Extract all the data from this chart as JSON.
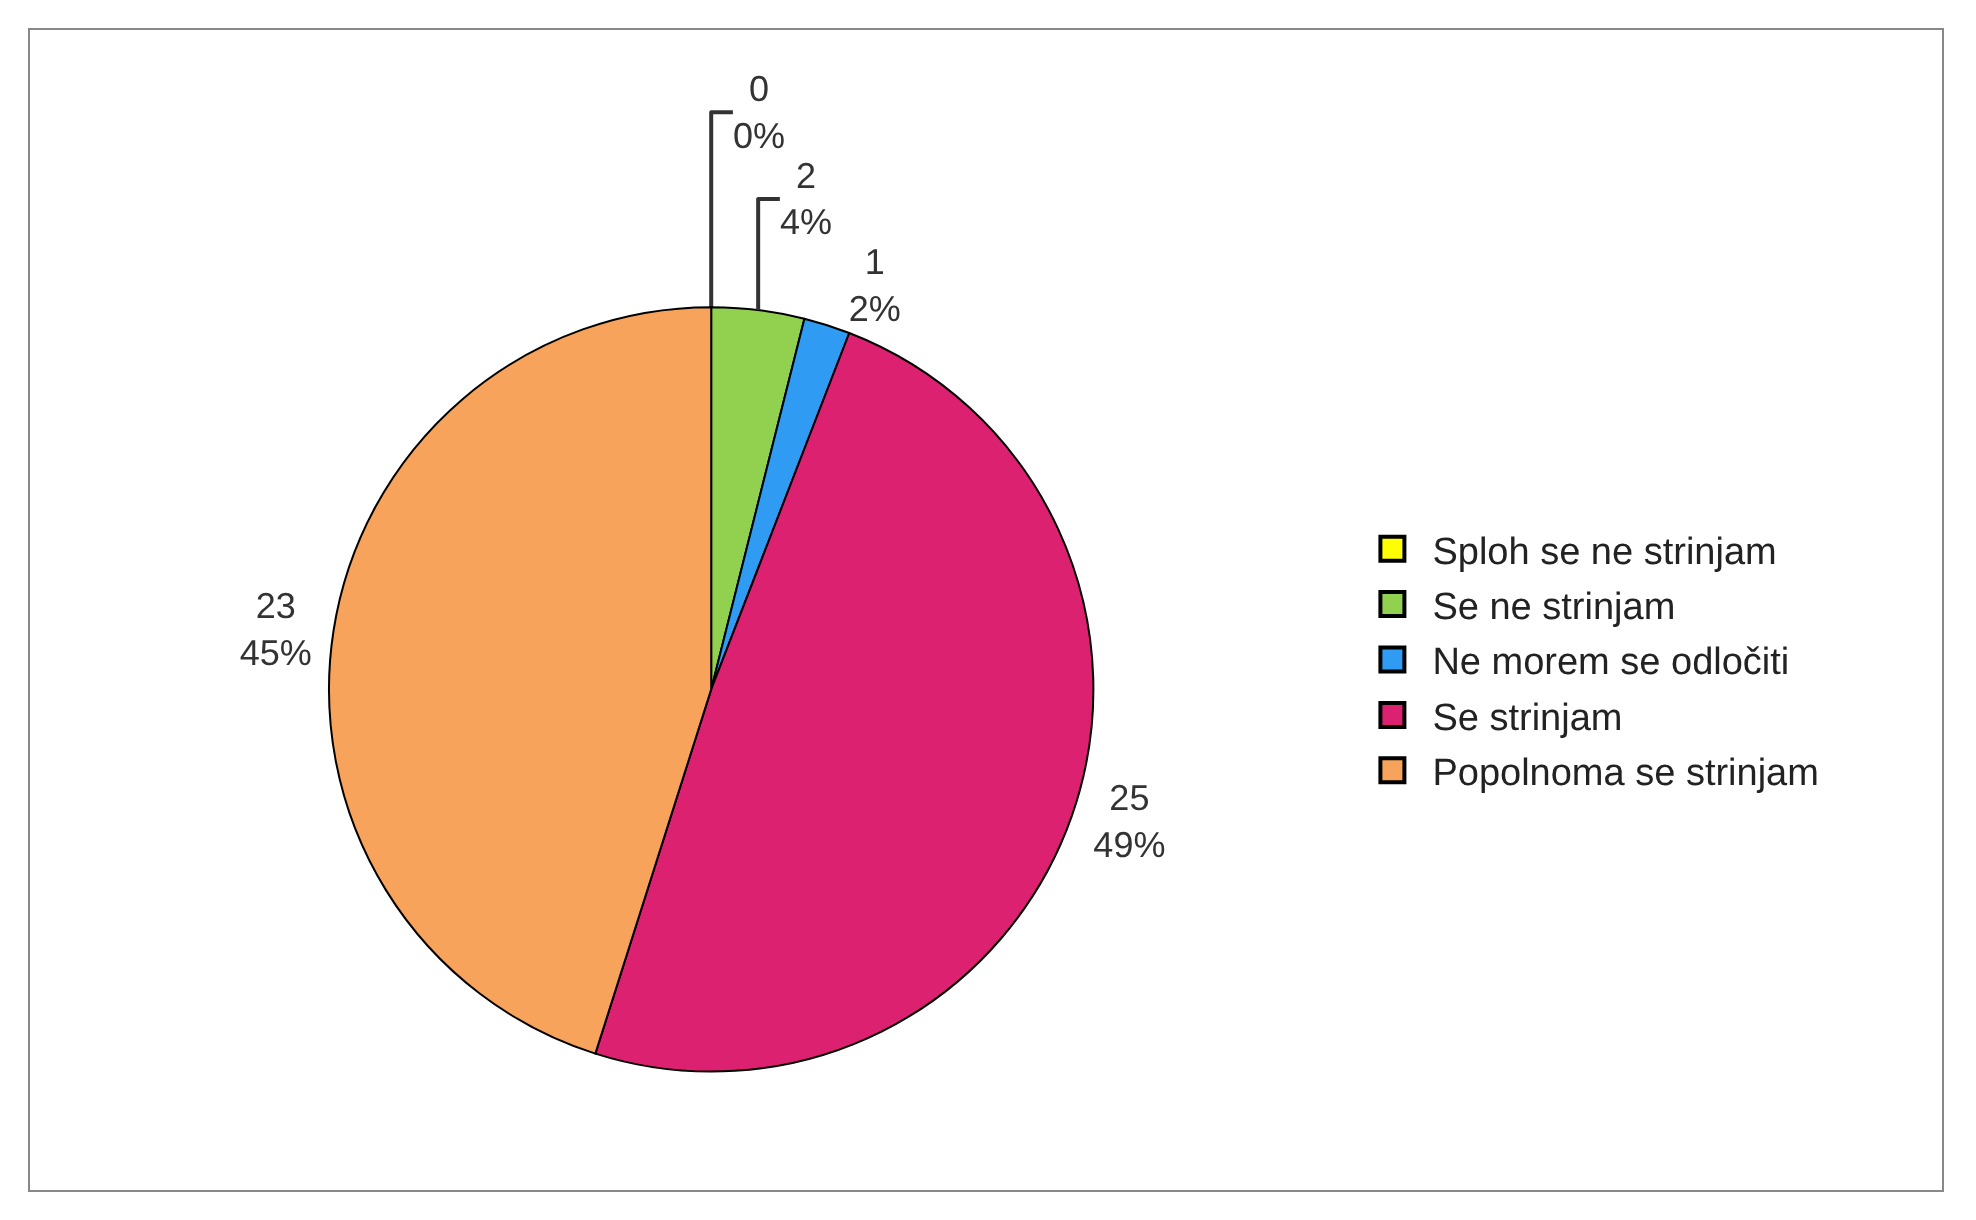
{
  "chart_data": {
    "type": "pie",
    "categories": [
      "Sploh se ne strinjam",
      "Se ne strinjam",
      "Ne morem se odločiti",
      "Se strinjam",
      "Popolnoma se strinjam"
    ],
    "values": [
      0,
      2,
      1,
      25,
      23
    ],
    "colors": [
      "#ffff00",
      "#92d050",
      "#2f9bf2",
      "#dc2170",
      "#f8a35b"
    ],
    "value_labels": [
      "0\n0%",
      "2\n4%",
      "1\n2%",
      "25\n49%",
      "23\n45%"
    ],
    "legend": "right"
  }
}
